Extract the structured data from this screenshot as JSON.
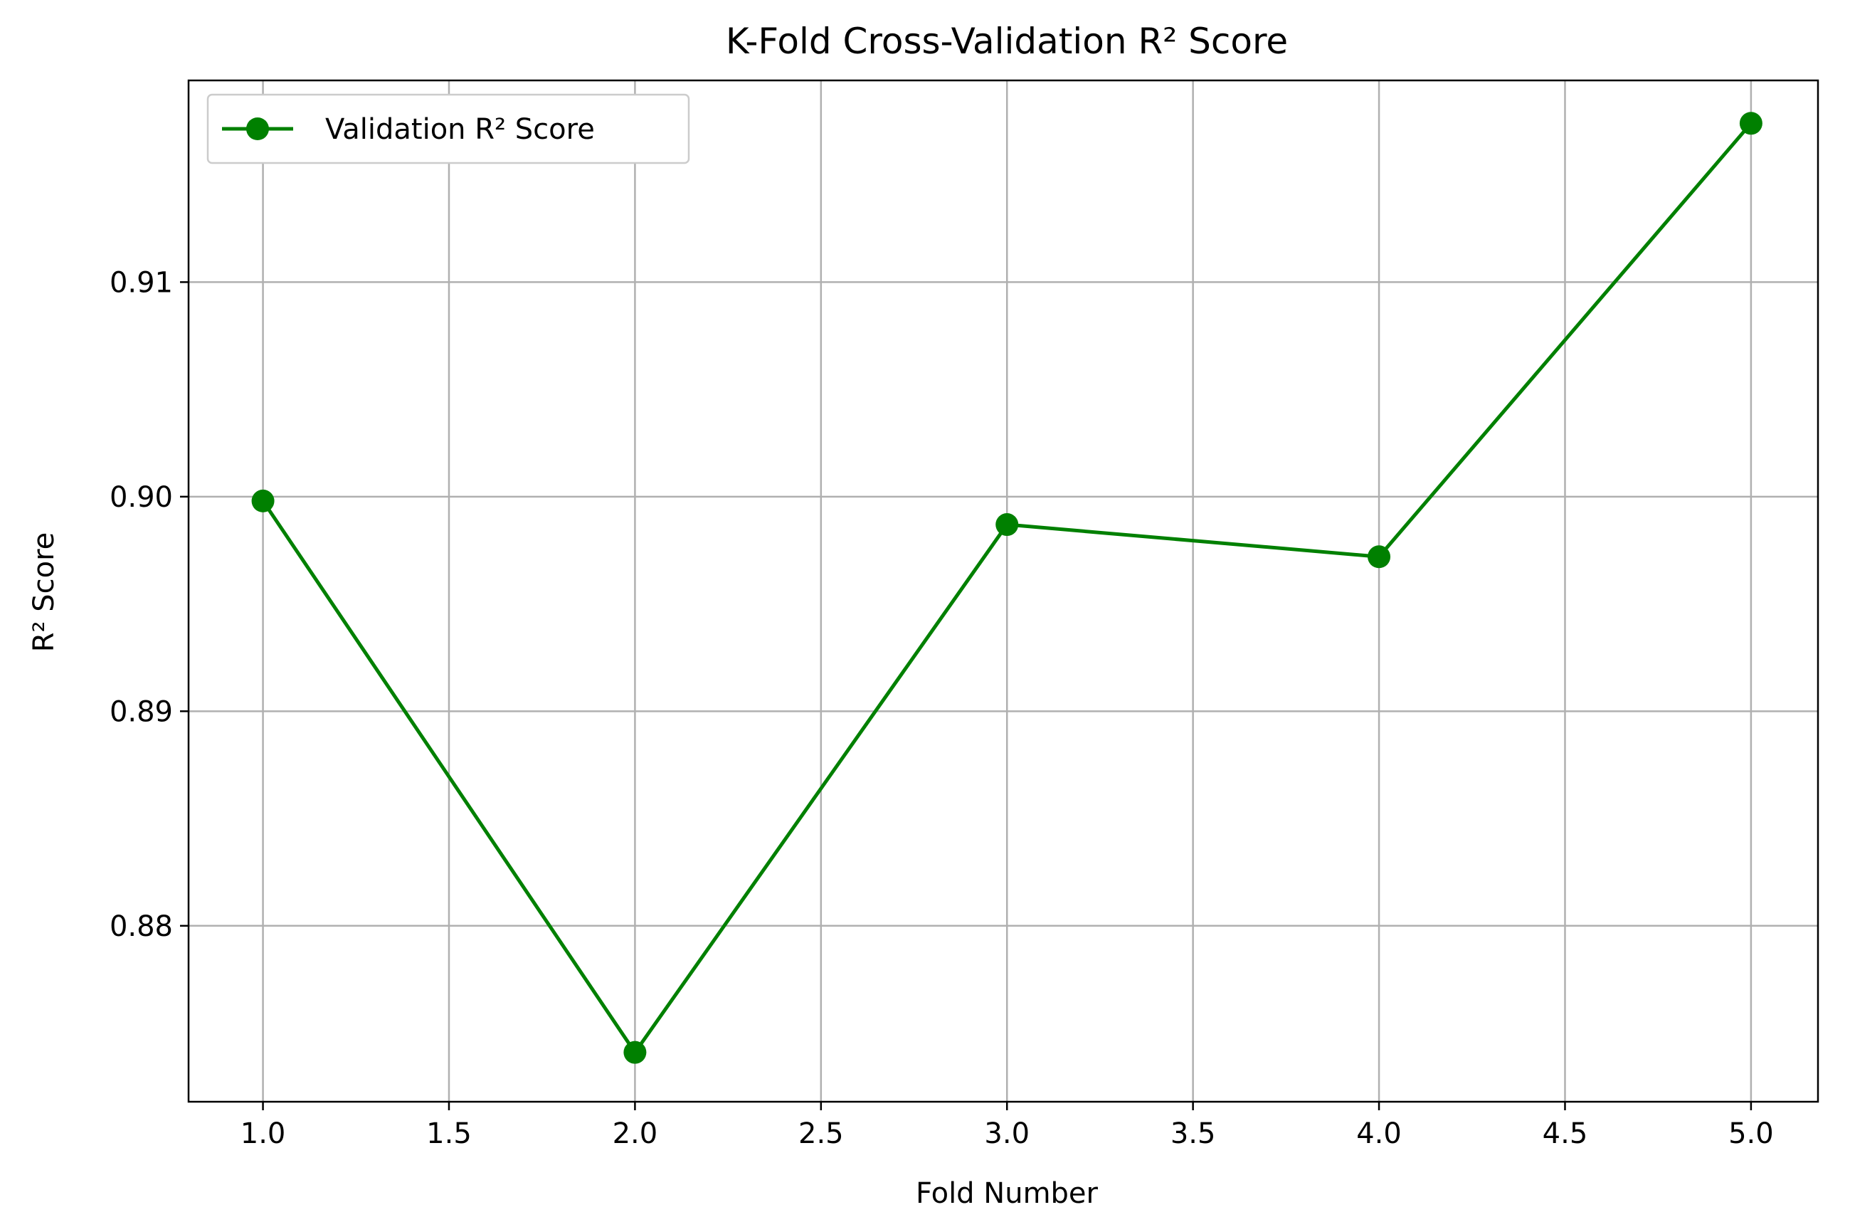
{
  "chart_data": {
    "type": "line",
    "title": "K-Fold Cross-Validation R² Score",
    "xlabel": "Fold Number",
    "ylabel": "R² Score",
    "xlim": [
      0.8,
      5.18
    ],
    "ylim": [
      0.8718,
      0.9194
    ],
    "x_ticks": [
      1.0,
      1.5,
      2.0,
      2.5,
      3.0,
      3.5,
      4.0,
      4.5,
      5.0
    ],
    "y_ticks": [
      0.88,
      0.89,
      0.9,
      0.91
    ],
    "x_tick_decimals": 1,
    "y_tick_decimals": 2,
    "grid": true,
    "legend_position": "top-left",
    "series": [
      {
        "name": "Validation R² Score",
        "color": "#008000",
        "marker": "circle",
        "x": [
          1,
          2,
          3,
          4,
          5
        ],
        "y": [
          0.8998,
          0.8741,
          0.8987,
          0.8972,
          0.9174
        ]
      }
    ]
  }
}
